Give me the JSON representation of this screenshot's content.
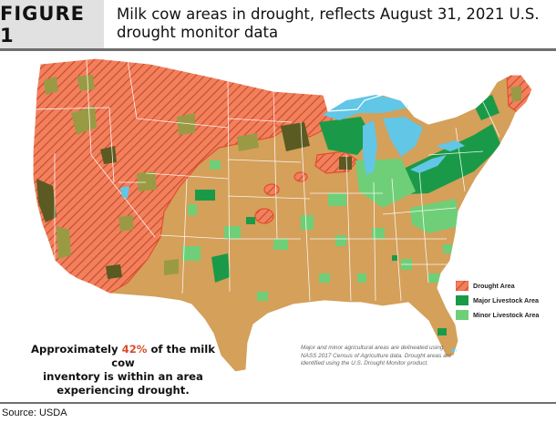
{
  "figure": {
    "label": "FIGURE 1",
    "title_line1": "Milk cow areas in drought, reflects August 31, 2021 U.S.",
    "title_line2": "drought monitor data"
  },
  "map": {
    "subject": "Contiguous United States",
    "colors": {
      "base_land": "#d4a05a",
      "drought_area": "#f2805c",
      "drought_hatch": "#c44a2b",
      "major_livestock": "#1a9a48",
      "minor_livestock": "#6fcf78",
      "major_livestock_in_drought": "#5a5a22",
      "minor_livestock_in_drought": "#9a9a45",
      "water": "#62c6e6",
      "state_borders": "#ffffff",
      "drought_outline": "#e34f2c"
    }
  },
  "legend": {
    "items": [
      {
        "label": "Drought Area",
        "swatch": "drought-hatch",
        "color": "#f2805c"
      },
      {
        "label": "Major Livestock Area",
        "swatch": "solid",
        "color": "#1a9a48"
      },
      {
        "label": "Minor Livestock Area",
        "swatch": "solid",
        "color": "#6fcf78"
      }
    ]
  },
  "callout": {
    "line_before": "Approximately",
    "percent": "42%",
    "line_after": "of the milk cow",
    "line2": "inventory is within an area",
    "line3": "experiencing drought."
  },
  "note": {
    "text": "Major and minor agricultural areas are delineated using NASS 2017 Census of Agriculture data. Drought areas are identified using the U.S. Drought Monitor product."
  },
  "source": "Source: USDA"
}
